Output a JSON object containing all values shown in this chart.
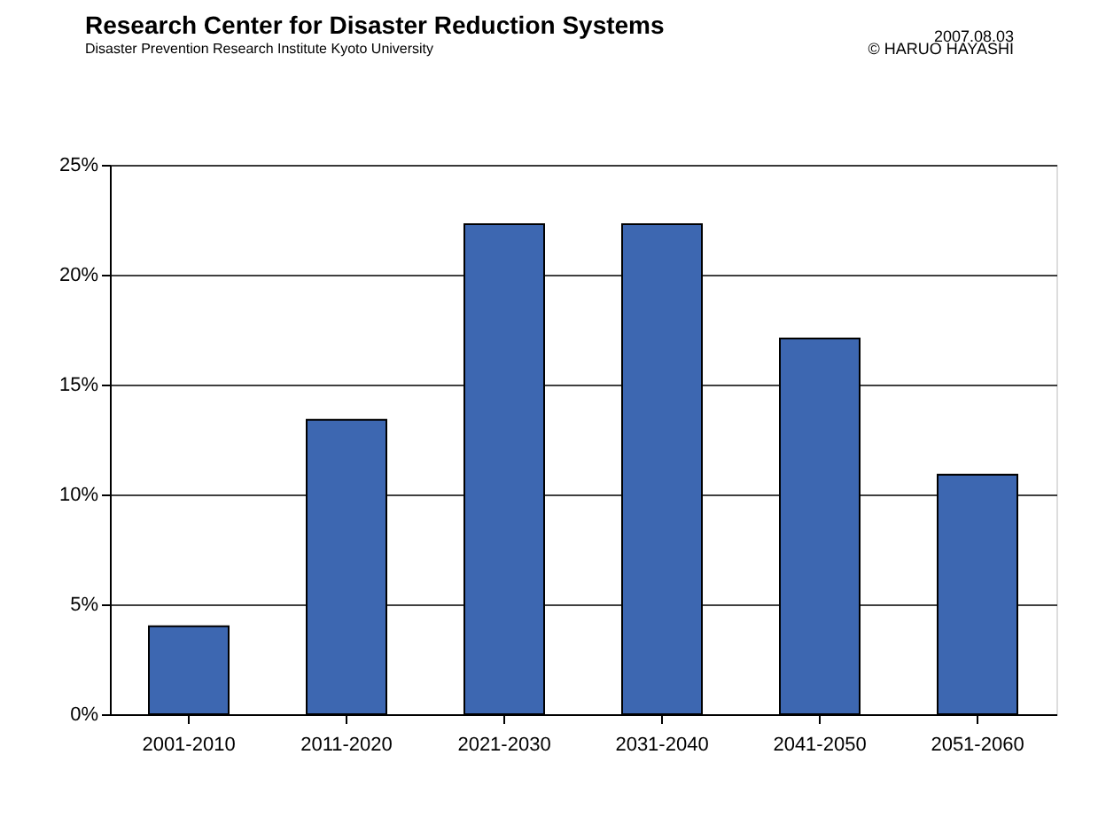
{
  "chart_data": {
    "type": "bar",
    "title": "Research Center for Disaster Reduction Systems",
    "subtitle": "Disaster Prevention Research Institute Kyoto University",
    "annotations": [
      "2007.08.03",
      "© HARUO HAYASHI"
    ],
    "categories": [
      "2001-2010",
      "2011-2020",
      "2021-2030",
      "2031-2040",
      "2041-2050",
      "2051-2060"
    ],
    "values": [
      4.0,
      13.4,
      22.3,
      22.3,
      17.1,
      10.9
    ],
    "color": "#3d67b1",
    "ylim": [
      0,
      25
    ],
    "yticks": [
      {
        "value": 0,
        "label": "0%"
      },
      {
        "value": 5,
        "label": "5%"
      },
      {
        "value": 10,
        "label": "10%"
      },
      {
        "value": 15,
        "label": "15%"
      },
      {
        "value": 20,
        "label": "20%"
      },
      {
        "value": 25,
        "label": "25%"
      }
    ],
    "grid": "y"
  }
}
